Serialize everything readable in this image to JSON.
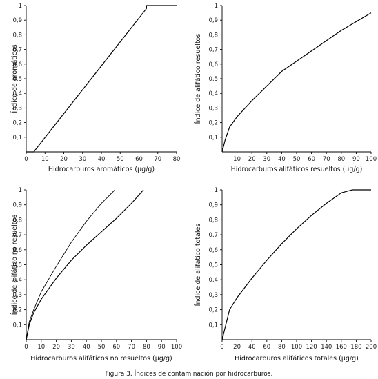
{
  "caption": "Figura 3. Índices de contaminación por hidrocarburos.",
  "chart_data": [
    {
      "type": "line",
      "xlabel": "Hidrocarburos aromáticos (µg/g)",
      "ylabel": "Índice de aromáticos",
      "xlim": [
        0,
        80
      ],
      "ylim": [
        0,
        1
      ],
      "xticks": [
        "0",
        "10",
        "20",
        "30",
        "40",
        "50",
        "60",
        "70",
        "80"
      ],
      "yticks": [
        "0,1",
        "0,2",
        "0,3",
        "0,4",
        "0,5",
        "0,6",
        "0,7",
        "0,8",
        "0,9",
        "1"
      ],
      "series": [
        {
          "x": [
            0,
            4,
            64,
            64,
            80
          ],
          "y": [
            0,
            0,
            0.98,
            1,
            1
          ]
        }
      ]
    },
    {
      "type": "line",
      "xlabel": "Hidrocarburos alifáticos resueltos (µg/g)",
      "ylabel": "Índice de alifático resueltos",
      "xlim": [
        0,
        100
      ],
      "ylim": [
        0,
        1
      ],
      "xticks": [
        "10",
        "20",
        "30",
        "40",
        "50",
        "60",
        "70",
        "80",
        "90",
        "100"
      ],
      "yticks": [
        "0,1",
        "0,2",
        "0,3",
        "0,4",
        "0,5",
        "0,6",
        "0,7",
        "0,8",
        "0,9",
        "1"
      ],
      "series": [
        {
          "x": [
            0,
            2,
            5,
            10,
            20,
            30,
            40,
            50,
            60,
            70,
            80,
            90,
            100
          ],
          "y": [
            0,
            0.08,
            0.17,
            0.24,
            0.35,
            0.45,
            0.55,
            0.62,
            0.69,
            0.76,
            0.83,
            0.89,
            0.95
          ]
        }
      ]
    },
    {
      "type": "line",
      "xlabel": "Hidrocarburos alifáticos no resueltos (µg/g)",
      "ylabel": "Índice de alifático no resueltos",
      "xlim": [
        0,
        100
      ],
      "ylim": [
        0,
        1
      ],
      "xticks": [
        "0",
        "10",
        "20",
        "30",
        "40",
        "50",
        "60",
        "70",
        "80",
        "90",
        "100"
      ],
      "yticks": [
        "0,1",
        "0,2",
        "0,3",
        "0,4",
        "0,5",
        "0,6",
        "0,7",
        "0,8",
        "0,9",
        "1"
      ],
      "series": [
        {
          "x": [
            0,
            2,
            5,
            10,
            20,
            30,
            40,
            50,
            60,
            70,
            78
          ],
          "y": [
            0,
            0.1,
            0.18,
            0.27,
            0.41,
            0.53,
            0.63,
            0.72,
            0.81,
            0.91,
            1
          ]
        },
        {
          "x": [
            0,
            2,
            5,
            10,
            20,
            30,
            40,
            50,
            59
          ],
          "y": [
            0,
            0.12,
            0.2,
            0.32,
            0.49,
            0.65,
            0.79,
            0.91,
            1
          ]
        }
      ]
    },
    {
      "type": "line",
      "xlabel": "Hidrocarburos alifáticos totales (µg/g)",
      "ylabel": "Índice de alifático totales",
      "xlim": [
        0,
        200
      ],
      "ylim": [
        0,
        1
      ],
      "xticks": [
        "0",
        "20",
        "40",
        "60",
        "80",
        "100",
        "120",
        "140",
        "160",
        "180",
        "200"
      ],
      "yticks": [
        "0,1",
        "0,2",
        "0,3",
        "0,4",
        "0,5",
        "0,6",
        "0,7",
        "0,8",
        "0,9",
        "1"
      ],
      "series": [
        {
          "x": [
            0,
            5,
            10,
            20,
            40,
            60,
            80,
            100,
            120,
            140,
            160,
            175,
            200
          ],
          "y": [
            0,
            0.1,
            0.2,
            0.28,
            0.41,
            0.53,
            0.64,
            0.74,
            0.83,
            0.91,
            0.98,
            1,
            1
          ]
        }
      ]
    }
  ]
}
